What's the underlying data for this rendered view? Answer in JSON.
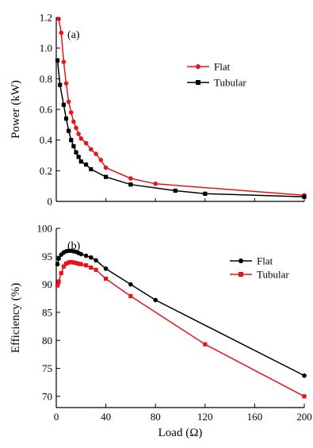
{
  "chart_data": [
    {
      "type": "line",
      "panel_label": "(a)",
      "title": "",
      "xlabel": "",
      "ylabel": "Power (kW)",
      "xlim": [
        0,
        200
      ],
      "ylim": [
        0,
        1.2
      ],
      "xticks": [],
      "yticks": [
        0,
        0.2,
        0.4,
        0.6,
        0.8,
        1.0,
        1.2
      ],
      "ytick_labels": [
        "0",
        "0.2",
        "0.4",
        "0.6",
        "0.8",
        "1.0",
        "1.2"
      ],
      "legend_position": "right",
      "grid": false,
      "series": [
        {
          "name": "Flat",
          "color": "#e8141c",
          "marker": "circle",
          "points": [
            [
              2,
              1.19
            ],
            [
              4,
              1.1
            ],
            [
              6,
              0.91
            ],
            [
              8,
              0.77
            ],
            [
              10,
              0.65
            ],
            [
              12,
              0.58
            ],
            [
              14,
              0.52
            ],
            [
              16,
              0.48
            ],
            [
              18,
              0.44
            ],
            [
              20,
              0.41
            ],
            [
              24,
              0.38
            ],
            [
              28,
              0.34
            ],
            [
              32,
              0.31
            ],
            [
              36,
              0.27
            ],
            [
              40,
              0.22
            ],
            [
              60,
              0.15
            ],
            [
              80,
              0.115
            ],
            [
              200,
              0.04
            ]
          ]
        },
        {
          "name": "Tubular",
          "color": "#000000",
          "marker": "square",
          "points": [
            [
              1,
              0.92
            ],
            [
              3,
              0.76
            ],
            [
              6,
              0.63
            ],
            [
              8,
              0.54
            ],
            [
              10,
              0.46
            ],
            [
              12,
              0.4
            ],
            [
              14,
              0.36
            ],
            [
              16,
              0.32
            ],
            [
              18,
              0.29
            ],
            [
              20,
              0.26
            ],
            [
              24,
              0.24
            ],
            [
              28,
              0.21
            ],
            [
              40,
              0.16
            ],
            [
              60,
              0.11
            ],
            [
              96,
              0.07
            ],
            [
              120,
              0.05
            ],
            [
              200,
              0.03
            ]
          ]
        }
      ]
    },
    {
      "type": "line",
      "panel_label": "(b)",
      "title": "",
      "xlabel": "Load (Ω)",
      "ylabel": "Efficiency (%)",
      "xlim": [
        0,
        200
      ],
      "ylim": [
        68,
        100
      ],
      "xticks": [
        0,
        40,
        80,
        120,
        160,
        200
      ],
      "yticks": [
        70,
        75,
        80,
        85,
        90,
        95,
        100
      ],
      "legend_position": "right",
      "grid": false,
      "series": [
        {
          "name": "Flat",
          "color": "#000000",
          "marker": "circle",
          "points": [
            [
              1,
              93.6
            ],
            [
              2,
              94.6
            ],
            [
              4,
              95.3
            ],
            [
              6,
              95.7
            ],
            [
              8,
              95.9
            ],
            [
              10,
              96.0
            ],
            [
              12,
              96.0
            ],
            [
              14,
              95.9
            ],
            [
              16,
              95.8
            ],
            [
              18,
              95.6
            ],
            [
              20,
              95.4
            ],
            [
              24,
              95.1
            ],
            [
              28,
              94.8
            ],
            [
              32,
              94.3
            ],
            [
              40,
              92.8
            ],
            [
              60,
              90.0
            ],
            [
              80,
              87.2
            ],
            [
              200,
              73.7
            ]
          ]
        },
        {
          "name": "Tubular",
          "color": "#e8141c",
          "marker": "square",
          "points": [
            [
              1,
              89.8
            ],
            [
              2,
              90.5
            ],
            [
              4,
              92.0
            ],
            [
              6,
              93.2
            ],
            [
              8,
              93.7
            ],
            [
              10,
              93.9
            ],
            [
              12,
              94.0
            ],
            [
              14,
              93.9
            ],
            [
              16,
              93.8
            ],
            [
              18,
              93.7
            ],
            [
              20,
              93.6
            ],
            [
              24,
              93.4
            ],
            [
              28,
              93.0
            ],
            [
              32,
              92.6
            ],
            [
              40,
              91.0
            ],
            [
              60,
              87.9
            ],
            [
              120,
              79.3
            ],
            [
              200,
              70.0
            ]
          ]
        }
      ]
    }
  ]
}
